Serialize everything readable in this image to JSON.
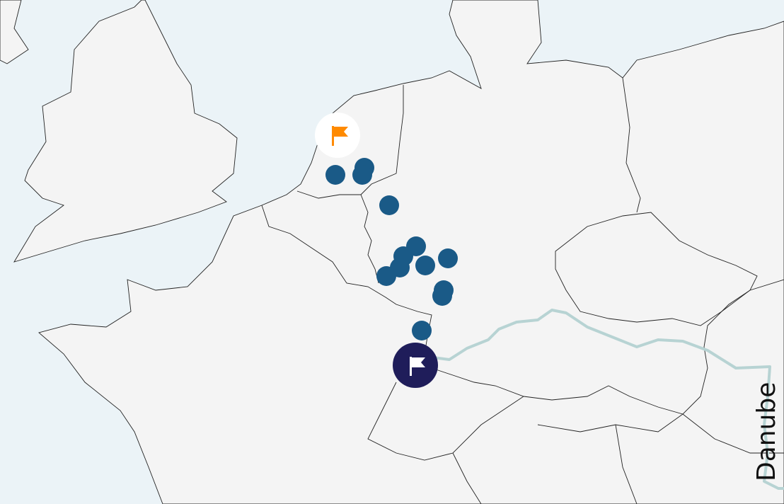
{
  "map": {
    "colors": {
      "sea": "#ebf3f7",
      "land": "#f4f4f4",
      "river": "#b7d3d3",
      "marker": "#1a5a87",
      "start_flag": "#ff8a00",
      "end_flag_bg": "#1f1d5a"
    },
    "river_label": "Danube",
    "markers_count_visible": 13,
    "flags": [
      {
        "name": "start-flag",
        "icon": "flag-icon",
        "color": "#ff8a00",
        "background": "#ffffff"
      },
      {
        "name": "end-flag",
        "icon": "flag-icon",
        "color": "#ffffff",
        "background": "#1f1d5a"
      }
    ]
  }
}
